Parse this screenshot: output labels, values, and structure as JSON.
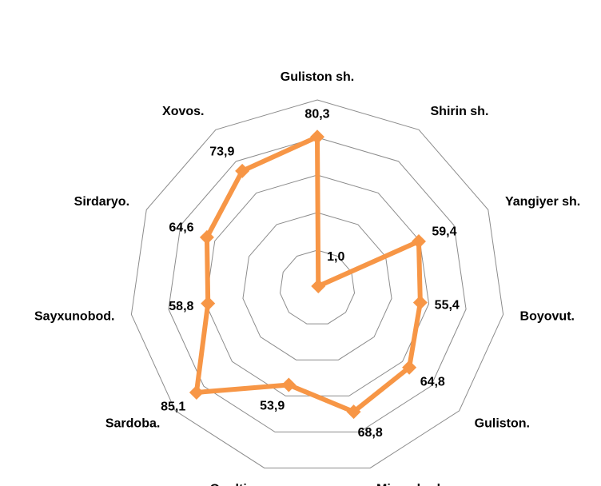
{
  "chart_data": {
    "type": "radar",
    "categories": [
      "Guliston sh.",
      "Shirin sh.",
      "Yangiyer sh.",
      "Boyovut.",
      "Guliston.",
      "Mirzaobod.",
      "Oqoltin.",
      "Sardoba.",
      "Sayxunobod.",
      "Sirdaryo.",
      "Xovos."
    ],
    "values": [
      80.3,
      1.0,
      59.4,
      55.4,
      64.8,
      68.8,
      53.9,
      85.1,
      58.8,
      64.6,
      73.9
    ],
    "value_labels": [
      "80,3",
      "1,0",
      "59,4",
      "55,4",
      "64,8",
      "68,8",
      "53,9",
      "85,1",
      "58,8",
      "64,6",
      "73,9"
    ],
    "color": "#f79646",
    "ylim": [
      0,
      100
    ],
    "yticks": [
      0,
      20,
      40,
      60,
      80,
      100
    ],
    "grid": true
  }
}
